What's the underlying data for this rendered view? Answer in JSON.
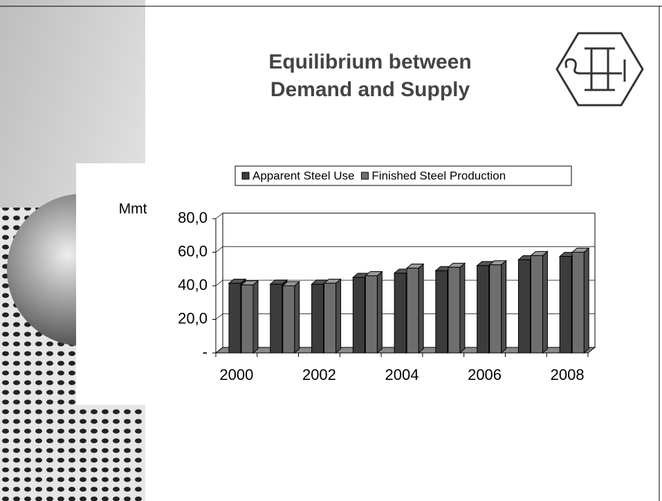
{
  "chart_data": {
    "type": "bar",
    "title": "Equilibrium between Demand and Supply",
    "y_label": "Mmt",
    "categories": [
      "2000",
      null,
      "2002",
      null,
      "2004",
      null,
      "2006",
      null,
      "2008"
    ],
    "series": [
      {
        "name": "Apparent Steel Use",
        "color": "#3c3c3c",
        "values": [
          41.5,
          41,
          41,
          45,
          47.5,
          49,
          52,
          55.5,
          57.5
        ]
      },
      {
        "name": "Finished Steel Production",
        "color": "#6e6e6e",
        "values": [
          40.5,
          40,
          41.5,
          46,
          50.5,
          51,
          52.5,
          58,
          60
        ]
      }
    ],
    "ylim": [
      0,
      80
    ],
    "yticks": [
      {
        "value": 0,
        "label": "-"
      },
      {
        "value": 20,
        "label": "20,0"
      },
      {
        "value": 40,
        "label": "40,0"
      },
      {
        "value": 60,
        "label": "60,0"
      },
      {
        "value": 80,
        "label": "80,0"
      }
    ],
    "grid": true,
    "legend": "top"
  }
}
